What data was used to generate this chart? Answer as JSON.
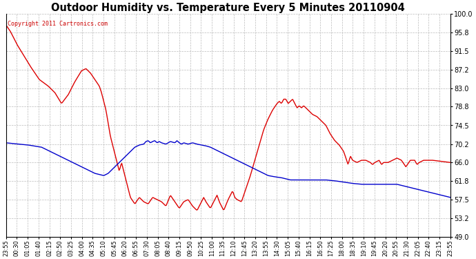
{
  "title": "Outdoor Humidity vs. Temperature Every 5 Minutes 20110904",
  "copyright_text": "Copyright 2011 Cartronics.com",
  "copyright_color": "#cc0000",
  "background_color": "#ffffff",
  "grid_color": "#bbbbbb",
  "grid_style": "--",
  "ylim": [
    49.0,
    100.0
  ],
  "yticks": [
    49.0,
    53.2,
    57.5,
    61.8,
    66.0,
    70.2,
    74.5,
    78.8,
    83.0,
    87.2,
    91.5,
    95.8,
    100.0
  ],
  "line_red_color": "#dd0000",
  "line_blue_color": "#0000cc",
  "x_labels": [
    "23:55",
    "00:30",
    "01:05",
    "01:40",
    "02:15",
    "02:50",
    "03:25",
    "04:00",
    "04:35",
    "05:10",
    "05:45",
    "06:20",
    "06:55",
    "07:30",
    "08:05",
    "08:40",
    "09:15",
    "09:50",
    "10:25",
    "11:00",
    "11:35",
    "12:10",
    "12:45",
    "13:20",
    "13:55",
    "14:30",
    "15:05",
    "15:40",
    "16:15",
    "16:50",
    "17:25",
    "18:00",
    "18:35",
    "19:10",
    "19:45",
    "20:20",
    "20:55",
    "21:30",
    "22:05",
    "22:40",
    "23:15",
    "23:55"
  ],
  "red_keypoints": [
    [
      0.0,
      97.5
    ],
    [
      0.01,
      96.0
    ],
    [
      0.025,
      93.0
    ],
    [
      0.055,
      88.0
    ],
    [
      0.075,
      85.0
    ],
    [
      0.095,
      83.5
    ],
    [
      0.11,
      82.0
    ],
    [
      0.125,
      79.5
    ],
    [
      0.14,
      81.5
    ],
    [
      0.155,
      84.5
    ],
    [
      0.17,
      87.0
    ],
    [
      0.18,
      87.5
    ],
    [
      0.19,
      86.5
    ],
    [
      0.2,
      85.0
    ],
    [
      0.21,
      83.5
    ],
    [
      0.215,
      82.0
    ],
    [
      0.225,
      78.0
    ],
    [
      0.235,
      72.0
    ],
    [
      0.245,
      68.0
    ],
    [
      0.255,
      64.0
    ],
    [
      0.26,
      66.0
    ],
    [
      0.27,
      62.0
    ],
    [
      0.28,
      58.0
    ],
    [
      0.29,
      56.5
    ],
    [
      0.3,
      58.0
    ],
    [
      0.31,
      57.0
    ],
    [
      0.32,
      56.5
    ],
    [
      0.33,
      58.0
    ],
    [
      0.34,
      57.5
    ],
    [
      0.35,
      57.0
    ],
    [
      0.36,
      56.0
    ],
    [
      0.37,
      58.5
    ],
    [
      0.38,
      57.0
    ],
    [
      0.39,
      55.5
    ],
    [
      0.4,
      57.0
    ],
    [
      0.41,
      57.5
    ],
    [
      0.42,
      56.0
    ],
    [
      0.43,
      55.0
    ],
    [
      0.44,
      57.0
    ],
    [
      0.445,
      58.0
    ],
    [
      0.45,
      57.0
    ],
    [
      0.46,
      55.5
    ],
    [
      0.47,
      57.5
    ],
    [
      0.475,
      58.5
    ],
    [
      0.48,
      57.0
    ],
    [
      0.49,
      55.0
    ],
    [
      0.5,
      57.5
    ],
    [
      0.51,
      59.5
    ],
    [
      0.515,
      58.0
    ],
    [
      0.52,
      57.5
    ],
    [
      0.53,
      57.0
    ],
    [
      0.535,
      58.5
    ],
    [
      0.54,
      60.0
    ],
    [
      0.55,
      63.0
    ],
    [
      0.56,
      66.5
    ],
    [
      0.57,
      70.0
    ],
    [
      0.58,
      73.5
    ],
    [
      0.59,
      76.0
    ],
    [
      0.6,
      78.0
    ],
    [
      0.61,
      79.5
    ],
    [
      0.615,
      80.0
    ],
    [
      0.62,
      79.5
    ],
    [
      0.625,
      80.5
    ],
    [
      0.63,
      80.5
    ],
    [
      0.635,
      79.5
    ],
    [
      0.64,
      80.0
    ],
    [
      0.645,
      80.5
    ],
    [
      0.65,
      79.5
    ],
    [
      0.655,
      78.5
    ],
    [
      0.66,
      79.0
    ],
    [
      0.665,
      78.5
    ],
    [
      0.67,
      79.0
    ],
    [
      0.68,
      78.0
    ],
    [
      0.69,
      77.0
    ],
    [
      0.7,
      76.5
    ],
    [
      0.71,
      75.5
    ],
    [
      0.72,
      74.5
    ],
    [
      0.73,
      72.5
    ],
    [
      0.74,
      71.0
    ],
    [
      0.75,
      70.0
    ],
    [
      0.76,
      68.5
    ],
    [
      0.765,
      67.0
    ],
    [
      0.77,
      65.5
    ],
    [
      0.775,
      67.5
    ],
    [
      0.78,
      66.5
    ],
    [
      0.79,
      66.0
    ],
    [
      0.8,
      66.5
    ],
    [
      0.81,
      66.5
    ],
    [
      0.82,
      66.0
    ],
    [
      0.825,
      65.5
    ],
    [
      0.83,
      66.0
    ],
    [
      0.84,
      66.5
    ],
    [
      0.845,
      65.5
    ],
    [
      0.85,
      66.0
    ],
    [
      0.86,
      66.0
    ],
    [
      0.87,
      66.5
    ],
    [
      0.88,
      67.0
    ],
    [
      0.89,
      66.5
    ],
    [
      0.9,
      65.0
    ],
    [
      0.91,
      66.5
    ],
    [
      0.92,
      66.5
    ],
    [
      0.925,
      65.5
    ],
    [
      0.93,
      66.0
    ],
    [
      0.94,
      66.5
    ],
    [
      0.96,
      66.5
    ],
    [
      1.0,
      66.0
    ]
  ],
  "blue_keypoints": [
    [
      0.0,
      70.5
    ],
    [
      0.02,
      70.3
    ],
    [
      0.05,
      70.0
    ],
    [
      0.08,
      69.5
    ],
    [
      0.1,
      68.5
    ],
    [
      0.12,
      67.5
    ],
    [
      0.14,
      66.5
    ],
    [
      0.16,
      65.5
    ],
    [
      0.18,
      64.5
    ],
    [
      0.2,
      63.5
    ],
    [
      0.22,
      63.0
    ],
    [
      0.23,
      63.5
    ],
    [
      0.24,
      64.5
    ],
    [
      0.25,
      65.5
    ],
    [
      0.26,
      66.5
    ],
    [
      0.27,
      67.5
    ],
    [
      0.28,
      68.5
    ],
    [
      0.29,
      69.5
    ],
    [
      0.3,
      70.0
    ],
    [
      0.31,
      70.2
    ],
    [
      0.315,
      70.8
    ],
    [
      0.32,
      71.0
    ],
    [
      0.325,
      70.5
    ],
    [
      0.33,
      70.8
    ],
    [
      0.335,
      71.0
    ],
    [
      0.34,
      70.5
    ],
    [
      0.345,
      70.8
    ],
    [
      0.35,
      70.5
    ],
    [
      0.36,
      70.2
    ],
    [
      0.37,
      70.8
    ],
    [
      0.38,
      70.5
    ],
    [
      0.385,
      71.0
    ],
    [
      0.39,
      70.5
    ],
    [
      0.395,
      70.2
    ],
    [
      0.4,
      70.5
    ],
    [
      0.41,
      70.2
    ],
    [
      0.42,
      70.5
    ],
    [
      0.43,
      70.2
    ],
    [
      0.44,
      70.0
    ],
    [
      0.45,
      69.8
    ],
    [
      0.46,
      69.5
    ],
    [
      0.47,
      69.0
    ],
    [
      0.48,
      68.5
    ],
    [
      0.49,
      68.0
    ],
    [
      0.5,
      67.5
    ],
    [
      0.51,
      67.0
    ],
    [
      0.52,
      66.5
    ],
    [
      0.53,
      66.0
    ],
    [
      0.54,
      65.5
    ],
    [
      0.55,
      65.0
    ],
    [
      0.56,
      64.5
    ],
    [
      0.57,
      64.0
    ],
    [
      0.58,
      63.5
    ],
    [
      0.59,
      63.0
    ],
    [
      0.6,
      62.8
    ],
    [
      0.62,
      62.5
    ],
    [
      0.64,
      62.0
    ],
    [
      0.66,
      62.0
    ],
    [
      0.68,
      62.0
    ],
    [
      0.7,
      62.0
    ],
    [
      0.72,
      62.0
    ],
    [
      0.74,
      61.8
    ],
    [
      0.76,
      61.5
    ],
    [
      0.78,
      61.2
    ],
    [
      0.8,
      61.0
    ],
    [
      0.82,
      61.0
    ],
    [
      0.84,
      61.0
    ],
    [
      0.86,
      61.0
    ],
    [
      0.88,
      61.0
    ],
    [
      0.9,
      60.5
    ],
    [
      0.92,
      60.0
    ],
    [
      0.94,
      59.5
    ],
    [
      0.96,
      59.0
    ],
    [
      0.98,
      58.5
    ],
    [
      1.0,
      58.0
    ]
  ]
}
